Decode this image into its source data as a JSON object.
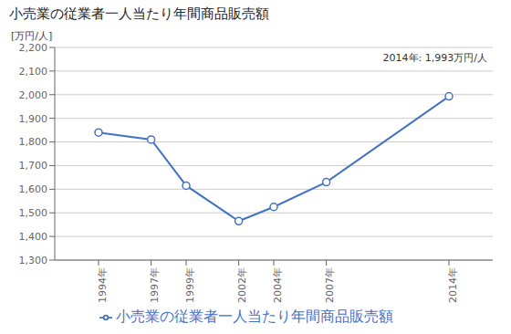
{
  "chart_data": {
    "type": "line",
    "title": "小売業の従業者一人当たり年間商品販売額",
    "y_label": "[万円/人]",
    "annotation": "2014年: 1,993万円/人",
    "x": [
      1994,
      1997,
      1999,
      2002,
      2004,
      2007,
      2014
    ],
    "xlim": [
      1991.5,
      2016.5
    ],
    "xticks": [
      {
        "value": 1994,
        "label": "1994年"
      },
      {
        "value": 1997,
        "label": "1997年"
      },
      {
        "value": 1999,
        "label": "1999年"
      },
      {
        "value": 2002,
        "label": "2002年"
      },
      {
        "value": 2004,
        "label": "2004年"
      },
      {
        "value": 2007,
        "label": "2007年"
      },
      {
        "value": 2014,
        "label": "2014年"
      }
    ],
    "ylim": [
      1300,
      2200
    ],
    "yticks": [
      {
        "value": 1300,
        "label": "1,300"
      },
      {
        "value": 1400,
        "label": "1,400"
      },
      {
        "value": 1500,
        "label": "1,500"
      },
      {
        "value": 1600,
        "label": "1,600"
      },
      {
        "value": 1700,
        "label": "1,700"
      },
      {
        "value": 1800,
        "label": "1,800"
      },
      {
        "value": 1900,
        "label": "1,900"
      },
      {
        "value": 2000,
        "label": "2,000"
      },
      {
        "value": 2100,
        "label": "2,100"
      },
      {
        "value": 2200,
        "label": "2,200"
      }
    ],
    "series": [
      {
        "name": "小売業の従業者一人当たり年間商品販売額",
        "color": "#4472C4",
        "marker": "circle",
        "values": [
          1840,
          1810,
          1615,
          1465,
          1525,
          1630,
          1993
        ]
      }
    ],
    "grid": true,
    "legend": "bottom"
  }
}
